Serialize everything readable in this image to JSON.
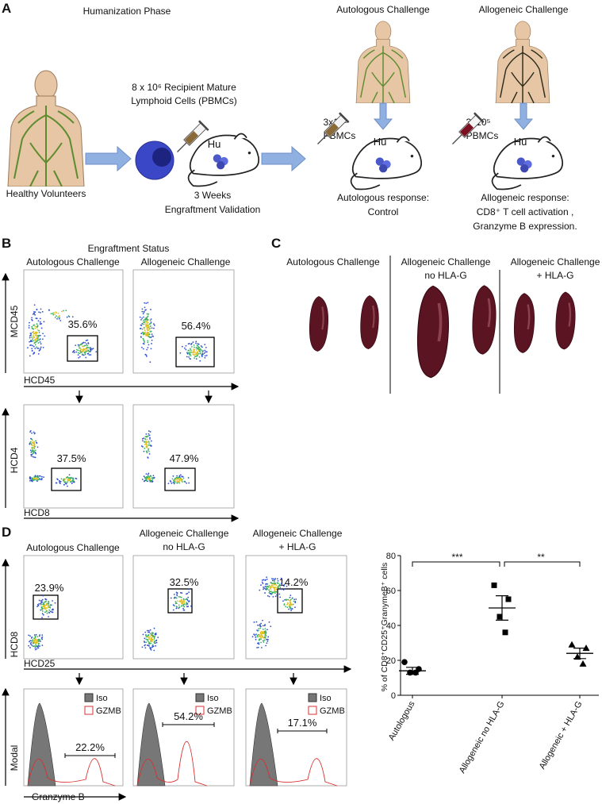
{
  "panels": {
    "a": {
      "label": "A",
      "phase": "Humanization Phase",
      "volunteers": "Healthy Volunteers",
      "cells": [
        "8 x 10⁶ Recipient Mature",
        "Lymphoid Cells (PBMCs)"
      ],
      "hu": "Hu",
      "engraftment": [
        "3 Weeks",
        "Engraftment Validation"
      ],
      "autologous": {
        "title": "Autologous Challenge",
        "dose": [
          "3x10⁵",
          "PBMCs"
        ],
        "hu": "Hu",
        "response": [
          "Autologous response:",
          "Control"
        ]
      },
      "allogeneic": {
        "title": "Allogeneic Challenge",
        "dose": [
          "3x10⁵",
          "PBMCs"
        ],
        "hu": "Hu",
        "response": [
          "Allogeneic response:",
          "CD8⁺ T cell activation ,",
          "Granzyme B expression."
        ]
      }
    },
    "b": {
      "label": "B",
      "title": "Engraftment Status",
      "columns": [
        "Autologous Challenge",
        "Allogeneic Challenge"
      ],
      "top": {
        "ylabel": "MCD45",
        "xlabel": "HCD45",
        "gates": [
          "35.6%",
          "56.4%"
        ]
      },
      "bottom": {
        "ylabel": "HCD4",
        "xlabel": "HCD8",
        "gates": [
          "37.5%",
          "47.9%"
        ]
      }
    },
    "c": {
      "label": "C",
      "groups": [
        [
          "Autologous Challenge"
        ],
        [
          "Allogeneic Challenge",
          "no HLA-G"
        ],
        [
          "Allogeneic Challenge",
          "+ HLA-G"
        ]
      ]
    },
    "d": {
      "label": "D",
      "columns": [
        [
          "Autologous Challenge"
        ],
        [
          "Allogeneic Challenge",
          "no HLA-G"
        ],
        [
          "Allogeneic Challenge",
          "+ HLA-G"
        ]
      ],
      "top": {
        "ylabel": "HCD8",
        "xlabel": "HCD25",
        "gates": [
          "23.9%",
          "32.5%",
          "14.2%"
        ]
      },
      "bottom": {
        "ylabel": "Modal",
        "xlabel": "Granzyme B",
        "legend": [
          "Iso",
          "GZMB"
        ],
        "gates": [
          "22.2%",
          "54.2%",
          "17.1%"
        ]
      }
    }
  },
  "chart_data": {
    "type": "dot",
    "ylabel": "% of CD8⁺CD25⁺GranymeB⁺ cells",
    "categories": [
      "Autologous",
      "Allogeneic no HLA-G",
      "Allogeneic + HLA-G"
    ],
    "values": [
      [
        19,
        15,
        13,
        13
      ],
      [
        63,
        55,
        45,
        36
      ],
      [
        29,
        27,
        22,
        18
      ]
    ],
    "means": [
      14,
      50,
      24
    ],
    "errors": [
      2,
      7,
      3
    ],
    "markers": [
      "circle",
      "square",
      "triangle"
    ],
    "color": "#000000",
    "ylim": [
      0,
      80
    ],
    "yticks": [
      0,
      20,
      40,
      60,
      80
    ],
    "annotations": [
      {
        "text": "***",
        "between": [
          0,
          1
        ]
      },
      {
        "text": "**",
        "between": [
          1,
          2
        ]
      }
    ]
  }
}
